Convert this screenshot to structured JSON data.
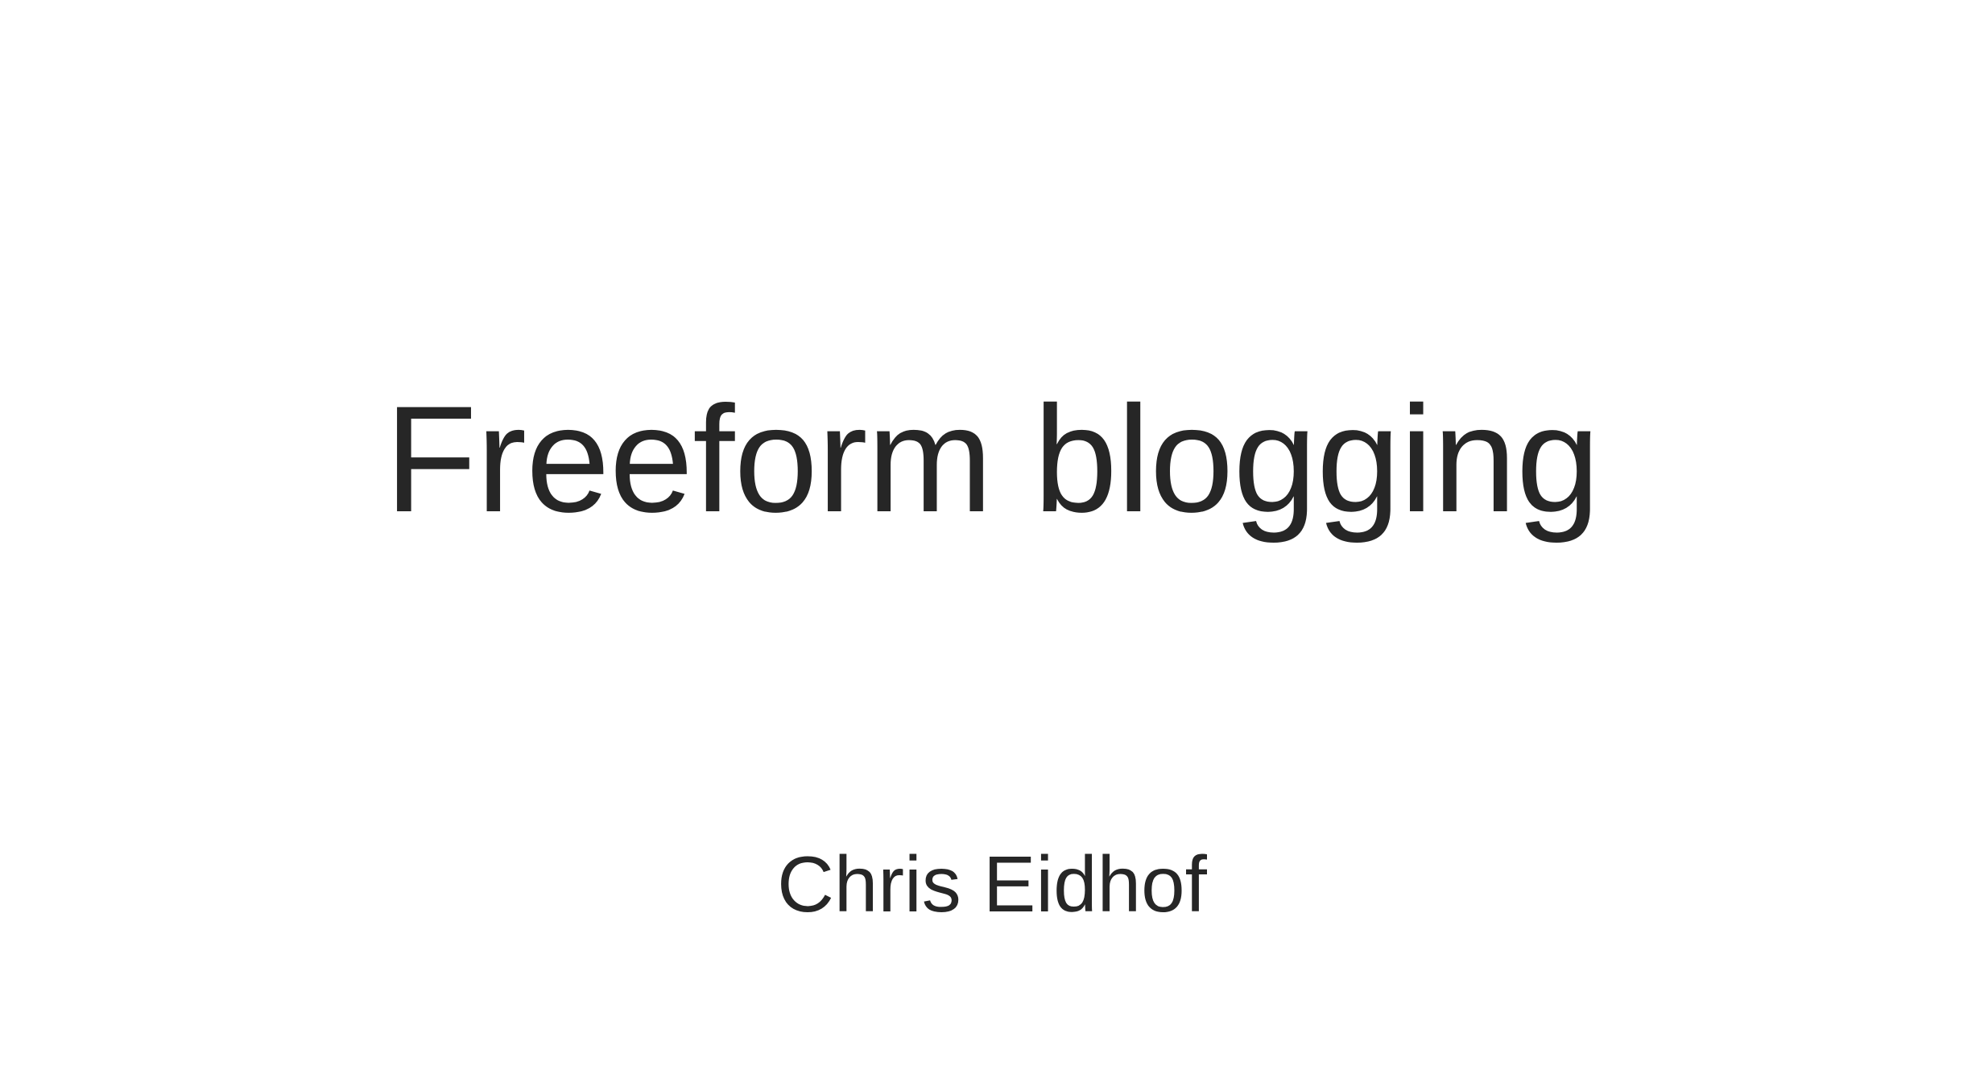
{
  "slide": {
    "title": "Freeform blogging",
    "author": "Chris Eidhof"
  },
  "colors": {
    "background": "#ffffff",
    "text": "#262626"
  }
}
